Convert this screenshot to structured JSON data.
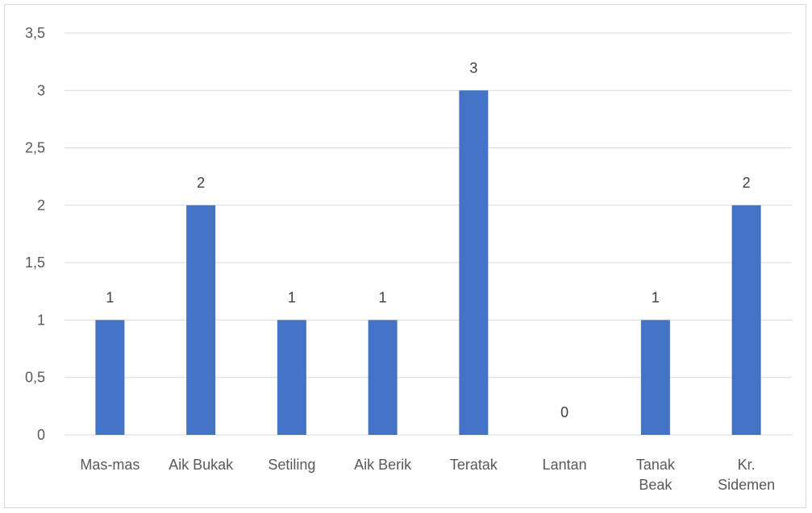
{
  "chart_data": {
    "type": "bar",
    "title": "",
    "xlabel": "",
    "ylabel": "",
    "categories": [
      [
        "Mas-mas"
      ],
      [
        "Aik Bukak"
      ],
      [
        "Setiling"
      ],
      [
        "Aik Berik"
      ],
      [
        "Teratak"
      ],
      [
        "Lantan"
      ],
      [
        "Tanak",
        "Beak"
      ],
      [
        "Kr.",
        "Sidemen"
      ]
    ],
    "values": [
      1,
      2,
      1,
      1,
      3,
      0,
      1,
      2
    ],
    "data_labels": [
      "1",
      "2",
      "1",
      "1",
      "3",
      "0",
      "1",
      "2"
    ],
    "yticks": [
      {
        "value": 0,
        "label": "0"
      },
      {
        "value": 0.5,
        "label": "0,5"
      },
      {
        "value": 1,
        "label": "1"
      },
      {
        "value": 1.5,
        "label": "1,5"
      },
      {
        "value": 2,
        "label": "2"
      },
      {
        "value": 2.5,
        "label": "2,5"
      },
      {
        "value": 3,
        "label": "3"
      },
      {
        "value": 3.5,
        "label": "3,5"
      }
    ],
    "ylim": [
      0,
      3.5
    ],
    "grid": true,
    "legend": "none",
    "bar_color": "#4472c4"
  }
}
